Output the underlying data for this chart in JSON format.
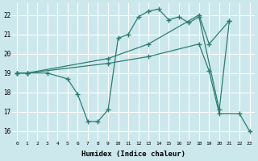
{
  "xlabel": "Humidex (Indice chaleur)",
  "bg_color": "#cce8ed",
  "grid_color": "#ffffff",
  "line_color": "#2d7d6e",
  "xlim": [
    -0.5,
    23.5
  ],
  "ylim": [
    15.5,
    22.6
  ],
  "xtick_labels": [
    "0",
    "1",
    "2",
    "3",
    "4",
    "5",
    "6",
    "7",
    "8",
    "9",
    "10",
    "11",
    "12",
    "13",
    "14",
    "15",
    "16",
    "17",
    "18",
    "19",
    "20",
    "21",
    "22",
    "23"
  ],
  "ytick_labels": [
    "16",
    "17",
    "18",
    "19",
    "20",
    "21",
    "22"
  ],
  "yticks": [
    16,
    17,
    18,
    19,
    20,
    21,
    22
  ],
  "series": [
    {
      "x": [
        0,
        1,
        3,
        5,
        6,
        7,
        8,
        9,
        10,
        11,
        12,
        13,
        14,
        15,
        16,
        17,
        18,
        20,
        21
      ],
      "y": [
        19,
        19,
        19,
        18.7,
        17.9,
        16.5,
        16.5,
        17.1,
        20.8,
        21.0,
        21.9,
        22.2,
        22.3,
        21.75,
        21.9,
        21.6,
        21.9,
        17.1,
        21.7
      ]
    },
    {
      "x": [
        0,
        1,
        9,
        13,
        18,
        19,
        21
      ],
      "y": [
        19,
        19,
        19.75,
        20.5,
        22.0,
        20.5,
        21.7
      ]
    },
    {
      "x": [
        0,
        1,
        9,
        13,
        18,
        19,
        20,
        22,
        23
      ],
      "y": [
        19,
        19,
        19.5,
        19.85,
        20.5,
        19.1,
        16.9,
        16.9,
        16.0
      ]
    }
  ]
}
